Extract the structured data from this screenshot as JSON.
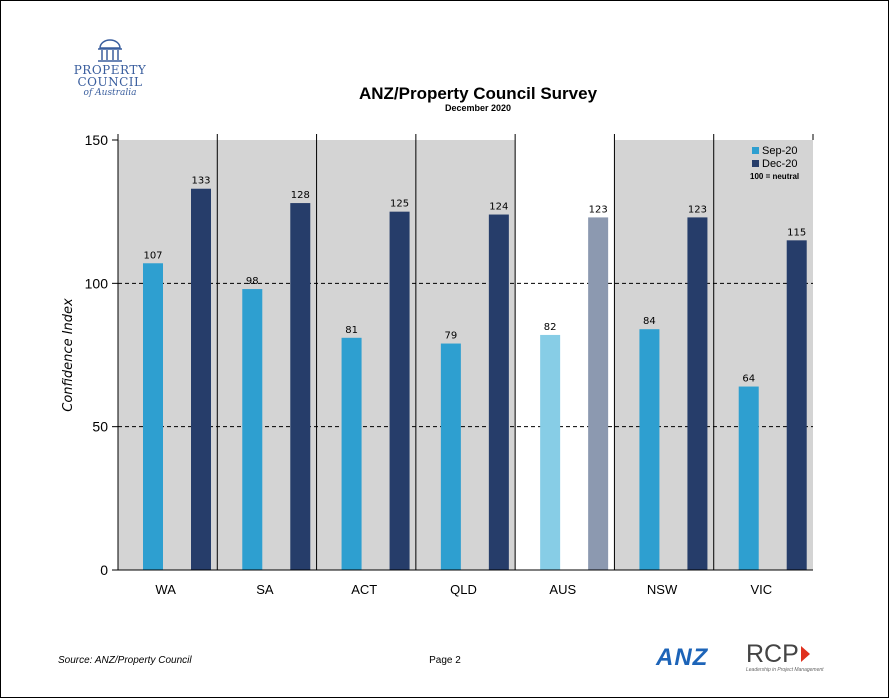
{
  "logo": {
    "line1": "PROPERTY",
    "line2": "COUNCIL",
    "line3": "of Australia"
  },
  "footer": {
    "source": "Source: ANZ/Property Council",
    "page": "Page 2"
  },
  "brands": {
    "anz": "ANZ",
    "rcp": "RCP",
    "rcp_tagline": "Leadership in Project Management"
  },
  "colors": {
    "sep": "#2e9fd0",
    "dec": "#263d6a",
    "sep_aus": "#87cde6",
    "dec_aus": "#8c99b0",
    "panel_bg": "#d4d4d4",
    "aus_bg": "#ffffff"
  },
  "chart_data": {
    "type": "bar",
    "title": "ANZ/Property Council Survey",
    "subtitle": "December 2020",
    "xlabel": "",
    "ylabel": "Confidence Index",
    "ylim": [
      0,
      150
    ],
    "yticks": [
      0,
      50,
      100,
      150
    ],
    "reference_lines": [
      50,
      100
    ],
    "categories": [
      "WA",
      "SA",
      "ACT",
      "QLD",
      "AUS",
      "NSW",
      "VIC"
    ],
    "highlight_category": "AUS",
    "series": [
      {
        "name": "Sep-20",
        "values": [
          107,
          98,
          81,
          79,
          82,
          84,
          64
        ]
      },
      {
        "name": "Dec-20",
        "values": [
          133,
          128,
          125,
          124,
          123,
          123,
          115
        ]
      }
    ],
    "legend": {
      "position": "top-right",
      "note": "100 = neutral"
    },
    "grid": false
  }
}
